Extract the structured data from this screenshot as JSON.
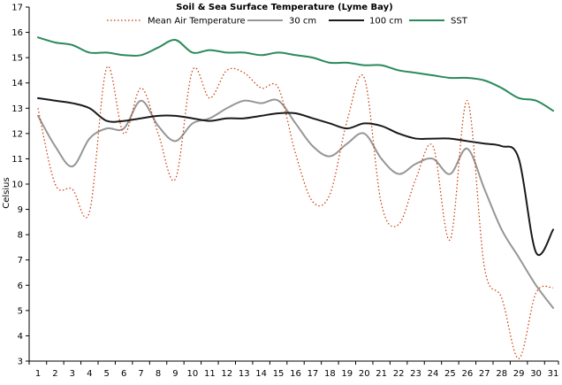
{
  "chart_data": {
    "type": "line",
    "title": "Soil & Sea Surface Temperature (Lyme Bay)",
    "xlabel": "",
    "ylabel": "Celsius",
    "xlim": [
      1,
      31
    ],
    "ylim": [
      3,
      17
    ],
    "y_ticks": [
      3,
      4,
      5,
      6,
      7,
      8,
      9,
      10,
      11,
      12,
      13,
      14,
      15,
      16,
      17
    ],
    "x": [
      1,
      2,
      3,
      4,
      5,
      6,
      7,
      8,
      9,
      10,
      11,
      12,
      13,
      14,
      15,
      16,
      17,
      18,
      19,
      20,
      21,
      22,
      23,
      24,
      25,
      26,
      27,
      28,
      29,
      30,
      31
    ],
    "grid": false,
    "legend_position": "top",
    "series": [
      {
        "name": "Mean Air Temperature",
        "color": "#cc3300",
        "style": "dotted",
        "values": [
          13.0,
          10.0,
          9.8,
          8.9,
          14.6,
          12.0,
          13.8,
          12.0,
          10.2,
          14.5,
          13.4,
          14.5,
          14.4,
          13.8,
          13.8,
          11.2,
          9.3,
          9.6,
          12.5,
          14.2,
          9.2,
          8.4,
          10.2,
          11.5,
          7.8,
          13.3,
          6.7,
          5.5,
          3.1,
          5.7,
          5.9
        ]
      },
      {
        "name": "30 cm",
        "color": "#969696",
        "style": "solid",
        "values": [
          12.7,
          11.5,
          10.7,
          11.8,
          12.2,
          12.2,
          13.3,
          12.3,
          11.7,
          12.4,
          12.6,
          13.0,
          13.3,
          13.2,
          13.3,
          12.4,
          11.5,
          11.1,
          11.6,
          12.0,
          11.0,
          10.4,
          10.8,
          11.0,
          10.4,
          11.4,
          9.8,
          8.2,
          7.1,
          6.0,
          5.1
        ]
      },
      {
        "name": "100 cm",
        "color": "#1a1a1a",
        "style": "solid",
        "values": [
          13.4,
          13.3,
          13.2,
          13.0,
          12.5,
          12.5,
          12.6,
          12.7,
          12.7,
          12.6,
          12.5,
          12.6,
          12.6,
          12.7,
          12.8,
          12.8,
          12.6,
          12.4,
          12.2,
          12.4,
          12.3,
          12.0,
          11.8,
          11.8,
          11.8,
          11.7,
          11.6,
          11.5,
          11.0,
          7.3,
          8.2
        ]
      },
      {
        "name": "SST",
        "color": "#2a8a5a",
        "style": "solid",
        "values": [
          15.8,
          15.6,
          15.5,
          15.2,
          15.2,
          15.1,
          15.1,
          15.4,
          15.7,
          15.2,
          15.3,
          15.2,
          15.2,
          15.1,
          15.2,
          15.1,
          15.0,
          14.8,
          14.8,
          14.7,
          14.7,
          14.5,
          14.4,
          14.3,
          14.2,
          14.2,
          14.1,
          13.8,
          13.4,
          13.3,
          12.9
        ]
      }
    ]
  }
}
